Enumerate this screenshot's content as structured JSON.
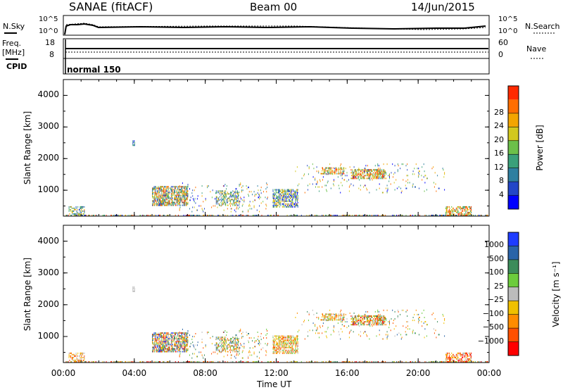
{
  "header": {
    "station": "SANAE (fitACF)",
    "beam": "Beam 00",
    "date": "14/Jun/2015"
  },
  "status_panels": {
    "nsky_label": "N.Sky",
    "nsearch_label": "N.Search",
    "nsky_ticks": [
      "10^5",
      "10^0"
    ],
    "nsearch_ticks": [
      "10^5",
      "10^0"
    ],
    "freq_label": "Freq.",
    "freq_unit": "[MHz]",
    "freq_ticks": [
      "18",
      "8"
    ],
    "nave_label": "Nave",
    "nave_ticks": [
      "60",
      "0"
    ],
    "cpid_label": "CPID",
    "cpid_value": "normal 150"
  },
  "chart_data": [
    {
      "type": "heatmap",
      "parameter": "Power",
      "ylabel": "Slant Range [km]",
      "xlabel": "Time UT",
      "xlim": [
        0,
        24
      ],
      "ylim": [
        180,
        4500
      ],
      "x_ticks": [
        "00:00",
        "04:00",
        "08:00",
        "12:00",
        "16:00",
        "20:00",
        "00:00"
      ],
      "y_ticks": [
        "1000",
        "2000",
        "3000",
        "4000"
      ],
      "colorbar_label": "Power [dB]",
      "colorbar_ticks": [
        "4",
        "8",
        "12",
        "16",
        "20",
        "24",
        "28"
      ],
      "colorbar_colors": [
        "#0000ff",
        "#2346c8",
        "#2f7fa0",
        "#3aa07a",
        "#6cc04a",
        "#d2c81e",
        "#f3a500",
        "#ff6e00",
        "#ff2a00"
      ],
      "clusters": [
        {
          "t": [
            0.0,
            24.0
          ],
          "r": [
            180,
            220
          ],
          "density": 0.35,
          "levels": [
            0,
            8
          ]
        },
        {
          "t": [
            0.3,
            1.2
          ],
          "r": [
            180,
            450
          ],
          "density": 0.4,
          "levels": [
            1,
            6
          ]
        },
        {
          "t": [
            5.0,
            7.0
          ],
          "r": [
            500,
            1100
          ],
          "density": 0.6,
          "levels": [
            1,
            8
          ]
        },
        {
          "t": [
            8.6,
            9.9
          ],
          "r": [
            500,
            950
          ],
          "density": 0.35,
          "levels": [
            1,
            6
          ]
        },
        {
          "t": [
            11.8,
            13.2
          ],
          "r": [
            450,
            1000
          ],
          "density": 0.55,
          "levels": [
            0,
            6
          ]
        },
        {
          "t": [
            14.5,
            15.8
          ],
          "r": [
            1500,
            1700
          ],
          "density": 0.5,
          "levels": [
            3,
            8
          ]
        },
        {
          "t": [
            16.2,
            18.2
          ],
          "r": [
            1350,
            1650
          ],
          "density": 0.55,
          "levels": [
            3,
            8
          ]
        },
        {
          "t": [
            21.5,
            23.0
          ],
          "r": [
            180,
            450
          ],
          "density": 0.45,
          "levels": [
            3,
            8
          ]
        },
        {
          "t": [
            3.9,
            4.0
          ],
          "r": [
            2400,
            2550
          ],
          "density": 0.6,
          "levels": [
            0,
            3
          ]
        },
        {
          "t": [
            6.5,
            11.5
          ],
          "r": [
            300,
            1200
          ],
          "density": 0.05,
          "levels": [
            0,
            7
          ]
        },
        {
          "t": [
            13.0,
            21.5
          ],
          "r": [
            900,
            1800
          ],
          "density": 0.04,
          "levels": [
            0,
            7
          ]
        }
      ]
    },
    {
      "type": "heatmap",
      "parameter": "Velocity",
      "ylabel": "Slant Range [km]",
      "xlabel": "Time UT",
      "xlim": [
        0,
        24
      ],
      "ylim": [
        180,
        4500
      ],
      "x_ticks": [
        "00:00",
        "04:00",
        "08:00",
        "12:00",
        "16:00",
        "20:00",
        "00:00"
      ],
      "y_ticks": [
        "1000",
        "2000",
        "3000",
        "4000"
      ],
      "colorbar_label": "Velocity [m s⁻¹]",
      "colorbar_ticks": [
        "1000",
        "500",
        "100",
        "25",
        "−25",
        "−100",
        "−500",
        "−1000"
      ],
      "colorbar_colors": [
        "#1e3cff",
        "#2a64a8",
        "#3c8c5a",
        "#6ccc3c",
        "#bcbcbc",
        "#f0c000",
        "#ff8c00",
        "#ff5000",
        "#ff0000"
      ],
      "clusters": [
        {
          "t": [
            0.0,
            24.0
          ],
          "r": [
            180,
            220
          ],
          "density": 0.35,
          "levels": [
            2,
            8
          ]
        },
        {
          "t": [
            0.3,
            1.2
          ],
          "r": [
            180,
            450
          ],
          "density": 0.4,
          "levels": [
            4,
            7
          ]
        },
        {
          "t": [
            5.0,
            7.0
          ],
          "r": [
            500,
            1100
          ],
          "density": 0.6,
          "levels": [
            0,
            8
          ]
        },
        {
          "t": [
            8.6,
            9.9
          ],
          "r": [
            500,
            950
          ],
          "density": 0.35,
          "levels": [
            1,
            7
          ]
        },
        {
          "t": [
            11.8,
            13.2
          ],
          "r": [
            450,
            1000
          ],
          "density": 0.55,
          "levels": [
            3,
            7
          ]
        },
        {
          "t": [
            14.5,
            15.8
          ],
          "r": [
            1500,
            1700
          ],
          "density": 0.5,
          "levels": [
            3,
            7
          ]
        },
        {
          "t": [
            16.2,
            18.2
          ],
          "r": [
            1350,
            1650
          ],
          "density": 0.55,
          "levels": [
            2,
            8
          ]
        },
        {
          "t": [
            21.5,
            23.0
          ],
          "r": [
            180,
            450
          ],
          "density": 0.45,
          "levels": [
            4,
            8
          ]
        },
        {
          "t": [
            3.9,
            4.0
          ],
          "r": [
            2400,
            2550
          ],
          "density": 0.6,
          "levels": [
            4,
            4
          ]
        },
        {
          "t": [
            6.5,
            11.5
          ],
          "r": [
            300,
            1200
          ],
          "density": 0.05,
          "levels": [
            1,
            7
          ]
        },
        {
          "t": [
            13.0,
            21.5
          ],
          "r": [
            900,
            1800
          ],
          "density": 0.04,
          "levels": [
            1,
            7
          ]
        }
      ]
    }
  ]
}
